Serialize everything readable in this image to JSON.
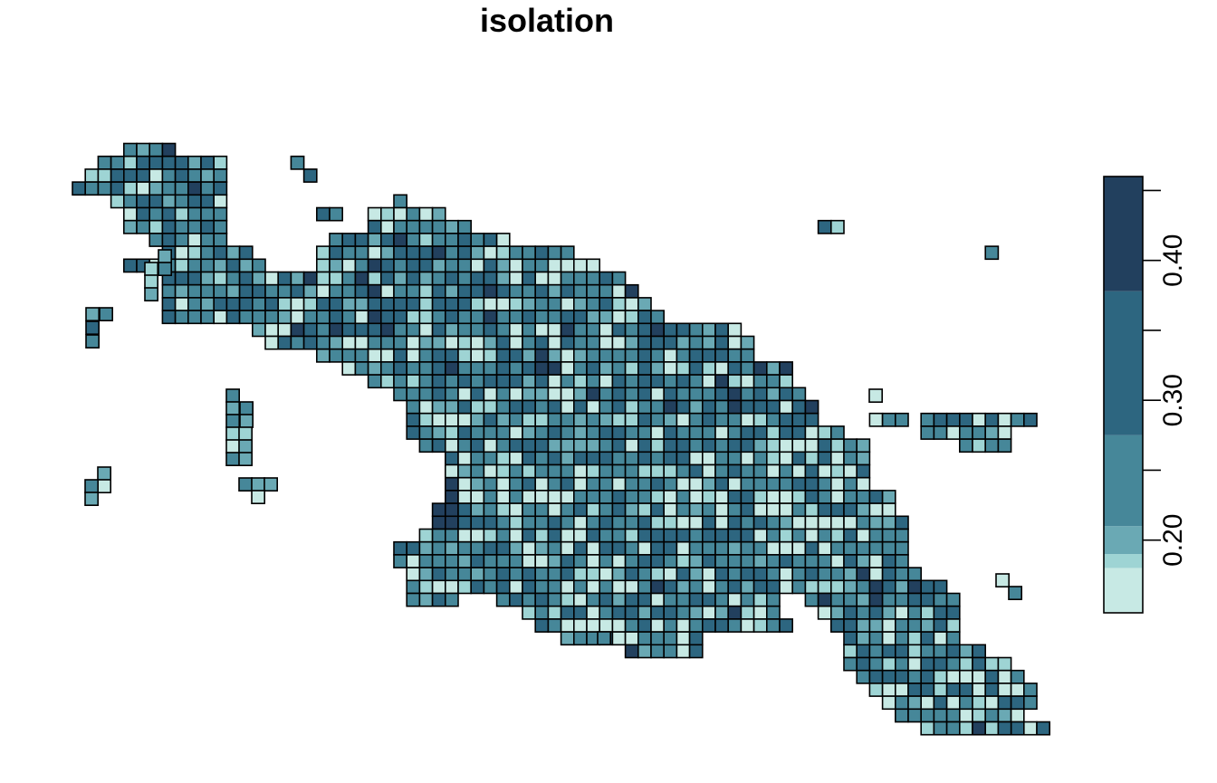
{
  "title": "isolation",
  "palette": [
    "#c7e9e4",
    "#9ed4d4",
    "#6aa9b4",
    "#468799",
    "#2d6680",
    "#22405e"
  ],
  "legend": {
    "breaks": [
      0.148,
      0.18,
      0.19,
      0.21,
      0.275,
      0.378,
      0.46
    ],
    "ticks": [
      0.2,
      0.25,
      0.3,
      0.35,
      0.4,
      0.45
    ],
    "tick_labels": [
      "0.20",
      "",
      "0.30",
      "",
      "0.40",
      ""
    ]
  }
}
